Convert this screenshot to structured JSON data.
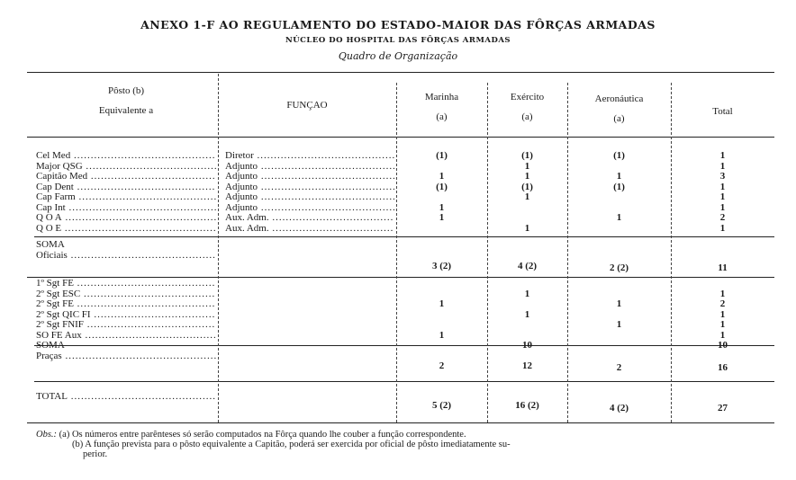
{
  "header": {
    "title": "ANEXO 1-F AO REGULAMENTO DO ESTADO-MAIOR DAS FÔRÇAS ARMADAS",
    "subtitle": "NÚCLEO DO HOSPITAL DAS FÔRÇAS ARMADAS",
    "caption": "Quadro de Organização"
  },
  "columns": {
    "posto_line1": "Pôsto (b)",
    "posto_line2": "Equivalente a",
    "funcao": "FUNÇAO",
    "marinha": "Marinha",
    "marinha_note": "(a)",
    "exercito": "Exército",
    "exercito_note": "(a)",
    "aeronautica": "Aeronáutica",
    "aeronautica_note": "(a)",
    "total": "Total"
  },
  "officers": [
    {
      "posto": "Cel Med",
      "funcao": "Diretor",
      "marinha": "(1)",
      "exercito": "(1)",
      "aeronautica": "(1)",
      "total": "1"
    },
    {
      "posto": "Major QSG",
      "funcao": "Adjunto",
      "marinha": "",
      "exercito": "1",
      "aeronautica": "",
      "total": "1"
    },
    {
      "posto": "Capitão Med",
      "funcao": "Adjunto",
      "marinha": "1",
      "exercito": "1",
      "aeronautica": "1",
      "total": "3"
    },
    {
      "posto": "Cap Dent",
      "funcao": "Adjunto",
      "marinha": "(1)",
      "exercito": "(1)",
      "aeronautica": "(1)",
      "total": "1"
    },
    {
      "posto": "Cap Farm",
      "funcao": "Adjunto",
      "marinha": "",
      "exercito": "1",
      "aeronautica": "",
      "total": "1"
    },
    {
      "posto": "Cap Int",
      "funcao": "Adjunto",
      "marinha": "1",
      "exercito": "",
      "aeronautica": "",
      "total": "1"
    },
    {
      "posto": "Q O A",
      "funcao": "Aux. Adm.",
      "marinha": "1",
      "exercito": "",
      "aeronautica": "1",
      "total": "2"
    },
    {
      "posto": "Q O E",
      "funcao": "Aux. Adm.",
      "marinha": "",
      "exercito": "1",
      "aeronautica": "",
      "total": "1"
    }
  ],
  "soma_oficiais": {
    "label1": "SOMA",
    "label2": "Oficiais",
    "marinha": "3 (2)",
    "exercito": "4 (2)",
    "aeronautica": "2 (2)",
    "total": "11"
  },
  "pracas": [
    {
      "posto": "1º Sgt FE",
      "funcao": "",
      "marinha": "",
      "exercito": "",
      "aeronautica": "",
      "total": ""
    },
    {
      "posto": "2º Sgt ESC",
      "funcao": "",
      "marinha": "",
      "exercito": "1",
      "aeronautica": "",
      "total": "1"
    },
    {
      "posto": "2º Sgt FE",
      "funcao": "",
      "marinha": "1",
      "exercito": "",
      "aeronautica": "1",
      "total": "2"
    },
    {
      "posto": "2º Sgt QIC FI",
      "funcao": "",
      "marinha": "",
      "exercito": "1",
      "aeronautica": "",
      "total": "1"
    },
    {
      "posto": "2º Sgt FNIF",
      "funcao": "",
      "marinha": "",
      "exercito": "",
      "aeronautica": "1",
      "total": "1"
    },
    {
      "posto": "SO FE Aux",
      "funcao": "",
      "marinha": "1",
      "exercito": "",
      "aeronautica": "",
      "total": "1"
    },
    {
      "posto": "",
      "funcao": "",
      "marinha": "",
      "exercito": "10",
      "aeronautica": "",
      "total": "10"
    }
  ],
  "soma_pracas": {
    "label1": "SOMA",
    "label2": "Praças",
    "marinha": "2",
    "exercito": "12",
    "aeronautica": "2",
    "total": "16"
  },
  "total_row": {
    "label": "TOTAL",
    "marinha": "5 (2)",
    "exercito": "16 (2)",
    "aeronautica": "4 (2)",
    "total": "27"
  },
  "obs": {
    "prefix": "Obs.:",
    "a": "(a) Os números entre parênteses só serão computados na Fôrça quando lhe couber a função correspondente.",
    "b1": "(b) A função prevista para o pôsto equivalente a Capitão, poderá ser exercida por oficial de pôsto imediatamente su-",
    "b2": "perior."
  }
}
